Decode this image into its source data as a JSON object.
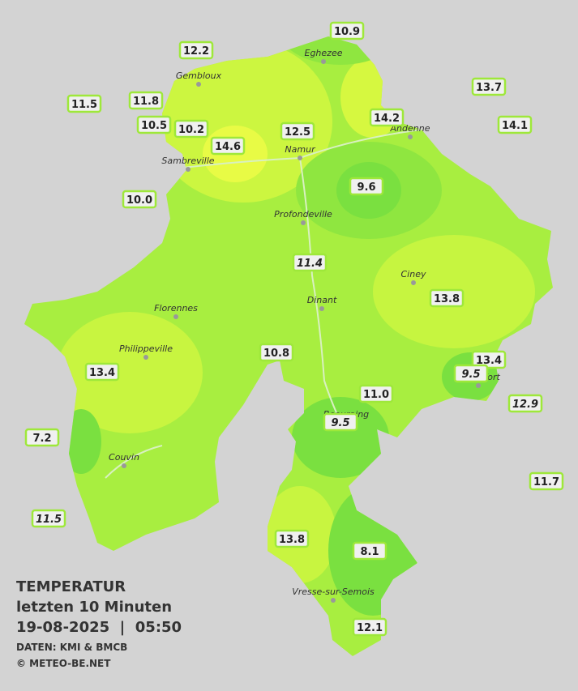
{
  "stations": [
    {
      "label": "10.9"
    },
    {
      "label": "12.2"
    },
    {
      "label": "13.7"
    },
    {
      "label": "11.5"
    },
    {
      "label": "11.8"
    },
    {
      "label": "10.5"
    },
    {
      "label": "10.2"
    },
    {
      "label": "14.6"
    },
    {
      "label": "12.5"
    },
    {
      "label": "14.2"
    },
    {
      "label": "14.1"
    },
    {
      "label": "9.6"
    },
    {
      "label": "10.0"
    },
    {
      "label": "11.4",
      "italic": true
    },
    {
      "label": "13.8"
    },
    {
      "label": "10.8"
    },
    {
      "label": "13.4"
    },
    {
      "label": "9.5",
      "italic": true
    },
    {
      "label": "13.4"
    },
    {
      "label": "12.9",
      "italic": true
    },
    {
      "label": "11.0"
    },
    {
      "label": "9.5",
      "italic": true
    },
    {
      "label": "7.2"
    },
    {
      "label": "11.7"
    },
    {
      "label": "11.5",
      "italic": true
    },
    {
      "label": "13.8"
    },
    {
      "label": "8.1"
    },
    {
      "label": "12.1"
    }
  ],
  "cities": [
    "Eghezee",
    "Gembloux",
    "Andenne",
    "Sambreville",
    "Namur",
    "Profondeville",
    "Ciney",
    "Dinant",
    "Florennes",
    "Philippeville",
    "Rochefort",
    "Beauraing",
    "Couvin",
    "Vresse-sur-Semois"
  ],
  "info": {
    "title": "TEMPERATUR",
    "subtitle": "letzten 10 Minuten",
    "datetime": "19-08-2025  |  05:50",
    "source": "DATEN: KMI & BMCB",
    "copyright": "© METEO-BE.NET"
  }
}
